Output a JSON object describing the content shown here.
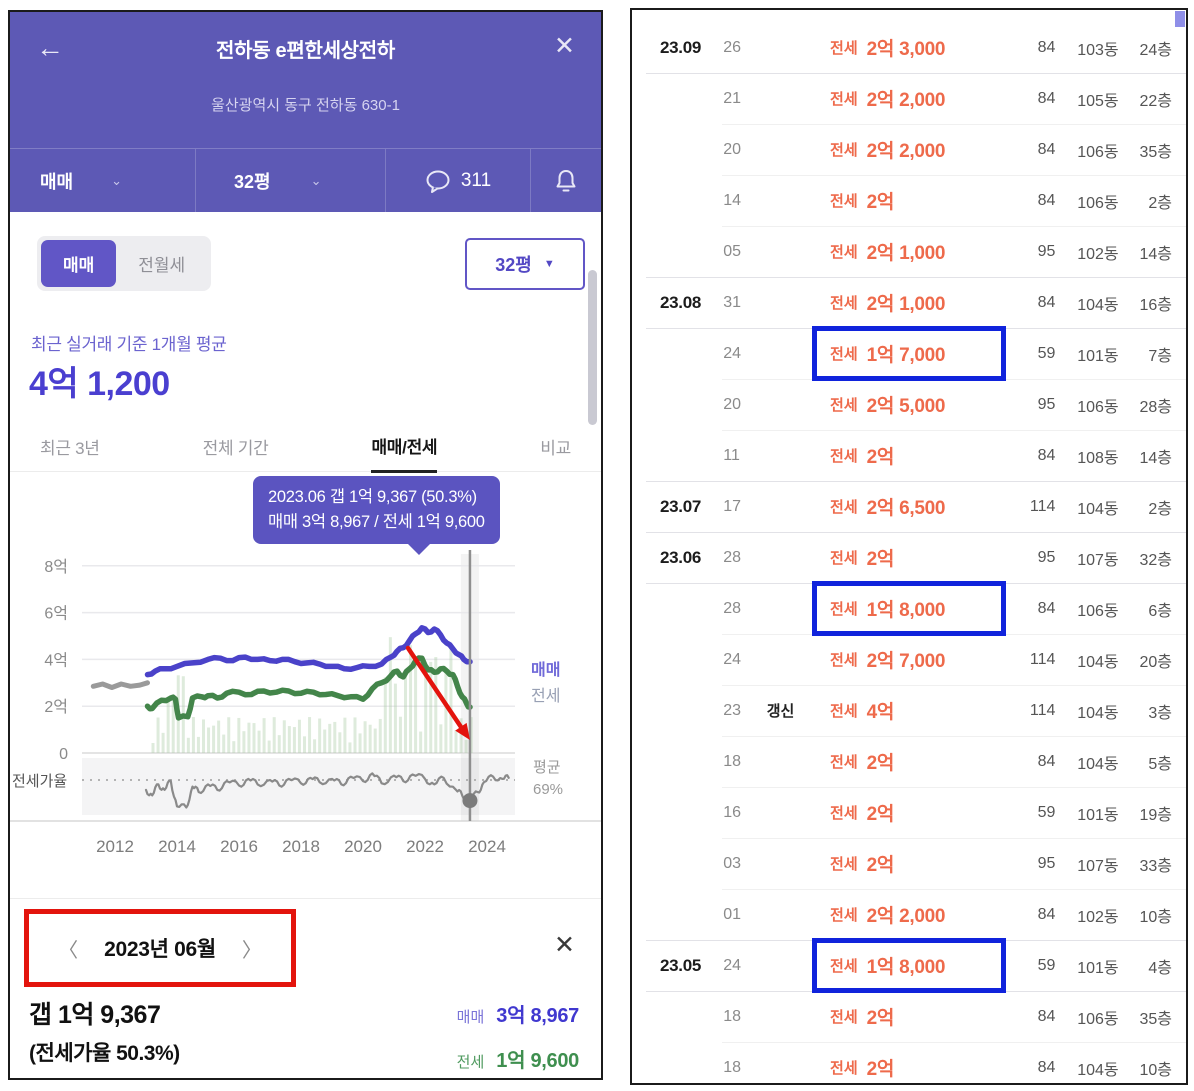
{
  "left_panel": {
    "header": {
      "back_glyph": "←",
      "title": "전하동 e편한세상전하",
      "close_glyph": "✕",
      "address": "울산광역시 동구 전하동 630-1",
      "trade_type": "매매",
      "trade_caret": "⌄",
      "size": "32평",
      "size_caret": "⌄",
      "comment_icon_name": "chat-bubble-icon",
      "comment_count": "311",
      "bell_icon_name": "bell-icon"
    },
    "controls": {
      "toggle_maemae": "매매",
      "toggle_wolse": "전월세",
      "area_select_value": "32평",
      "area_select_caret": "▼"
    },
    "summary": {
      "caption": "최근 실거래 기준 1개월 평균",
      "price": "4억 1,200"
    },
    "tabs": [
      {
        "label": "최근 3년",
        "active": false
      },
      {
        "label": "전체 기간",
        "active": false
      },
      {
        "label": "매매/전세",
        "active": true
      },
      {
        "label": "비교",
        "active": false
      }
    ],
    "tooltip": {
      "line1": "2023.06 갭 1억 9,367 (50.3%)",
      "line2": "매매 3억 8,967 / 전세 1억 9,600"
    },
    "detail": {
      "prev_glyph": "〈",
      "month": "2023년 06월",
      "next_glyph": "〉",
      "close_glyph": "✕",
      "gap": "갭 1억 9,367",
      "ratio": "(전세가율 50.3%)",
      "maemae_label": "매매",
      "maemae_value": "3억 8,967",
      "jeonse_label": "전세",
      "jeonse_value": "1억 9,600"
    }
  },
  "chart_data": {
    "type": "line",
    "title": "매매/전세 실거래 추이",
    "x_ticks": [
      2012,
      2014,
      2016,
      2018,
      2020,
      2022,
      2024
    ],
    "y_ticks": [
      {
        "label": "8억",
        "value": 8
      },
      {
        "label": "6억",
        "value": 6
      },
      {
        "label": "4억",
        "value": 4
      },
      {
        "label": "2억",
        "value": 2
      },
      {
        "label": "0",
        "value": 0
      }
    ],
    "legend": {
      "maemae": "매매",
      "jeonse": "전세"
    },
    "ratio_label": "전세가율",
    "avg_label_1": "평균",
    "avg_label_2": "69%",
    "avg_ratio": 69,
    "marker_year": 2023.45,
    "marker_ratio": 50.3,
    "series": {
      "pre_maemae_gray": [
        [
          2011.3,
          2.85
        ],
        [
          2011.6,
          2.95
        ],
        [
          2011.9,
          2.8
        ],
        [
          2012.2,
          2.95
        ],
        [
          2012.5,
          2.85
        ],
        [
          2012.8,
          2.9
        ],
        [
          2013.05,
          3.0
        ]
      ],
      "maemae": [
        [
          2013.05,
          3.35
        ],
        [
          2013.3,
          3.5
        ],
        [
          2013.6,
          3.6
        ],
        [
          2014,
          3.7
        ],
        [
          2014.5,
          3.85
        ],
        [
          2015,
          4.0
        ],
        [
          2015.4,
          4.05
        ],
        [
          2015.8,
          3.95
        ],
        [
          2016.2,
          4.1
        ],
        [
          2016.6,
          4.0
        ],
        [
          2017,
          3.95
        ],
        [
          2017.4,
          4.0
        ],
        [
          2017.8,
          3.9
        ],
        [
          2018.2,
          3.85
        ],
        [
          2018.6,
          3.8
        ],
        [
          2019,
          3.7
        ],
        [
          2019.4,
          3.6
        ],
        [
          2019.8,
          3.65
        ],
        [
          2020.2,
          3.7
        ],
        [
          2020.6,
          3.8
        ],
        [
          2020.9,
          4.1
        ],
        [
          2021.1,
          4.35
        ],
        [
          2021.3,
          4.5
        ],
        [
          2021.5,
          4.8
        ],
        [
          2021.7,
          5.1
        ],
        [
          2021.9,
          5.35
        ],
        [
          2022.1,
          5.15
        ],
        [
          2022.3,
          5.3
        ],
        [
          2022.5,
          5.05
        ],
        [
          2022.7,
          4.7
        ],
        [
          2022.9,
          4.45
        ],
        [
          2023.1,
          4.2
        ],
        [
          2023.25,
          4.0
        ],
        [
          2023.45,
          3.9
        ]
      ],
      "jeonse": [
        [
          2013.05,
          2.0
        ],
        [
          2013.2,
          1.9
        ],
        [
          2013.5,
          2.25
        ],
        [
          2013.8,
          2.35
        ],
        [
          2013.95,
          2.3
        ],
        [
          2014.05,
          1.5
        ],
        [
          2014.35,
          1.55
        ],
        [
          2014.5,
          2.35
        ],
        [
          2014.8,
          2.4
        ],
        [
          2015,
          2.45
        ],
        [
          2015.3,
          2.35
        ],
        [
          2015.6,
          2.55
        ],
        [
          2016,
          2.6
        ],
        [
          2016.4,
          2.5
        ],
        [
          2016.8,
          2.65
        ],
        [
          2017.2,
          2.6
        ],
        [
          2017.6,
          2.65
        ],
        [
          2018,
          2.55
        ],
        [
          2018.4,
          2.6
        ],
        [
          2018.8,
          2.5
        ],
        [
          2019.2,
          2.45
        ],
        [
          2019.6,
          2.4
        ],
        [
          2020,
          2.3
        ],
        [
          2020.3,
          2.75
        ],
        [
          2020.6,
          3.0
        ],
        [
          2020.9,
          3.3
        ],
        [
          2021.1,
          3.5
        ],
        [
          2021.3,
          3.25
        ],
        [
          2021.5,
          3.6
        ],
        [
          2021.7,
          3.95
        ],
        [
          2021.9,
          4.05
        ],
        [
          2022.1,
          3.55
        ],
        [
          2022.3,
          3.45
        ],
        [
          2022.5,
          3.6
        ],
        [
          2022.7,
          3.5
        ],
        [
          2022.9,
          3.35
        ],
        [
          2023.05,
          2.85
        ],
        [
          2023.2,
          2.4
        ],
        [
          2023.35,
          2.1
        ],
        [
          2023.45,
          1.96
        ]
      ],
      "jeonse_ratio": [
        [
          2013,
          60
        ],
        [
          2013.2,
          55
        ],
        [
          2013.4,
          65
        ],
        [
          2013.6,
          60
        ],
        [
          2013.8,
          68
        ],
        [
          2014,
          45
        ],
        [
          2014.3,
          44
        ],
        [
          2014.5,
          63
        ],
        [
          2014.7,
          58
        ],
        [
          2015,
          65
        ],
        [
          2015.3,
          60
        ],
        [
          2015.6,
          68
        ],
        [
          2016,
          64
        ],
        [
          2016.3,
          70
        ],
        [
          2016.6,
          65
        ],
        [
          2017,
          69
        ],
        [
          2017.3,
          64
        ],
        [
          2017.6,
          70
        ],
        [
          2018,
          66
        ],
        [
          2018.3,
          71
        ],
        [
          2018.6,
          67
        ],
        [
          2019,
          70
        ],
        [
          2019.3,
          65
        ],
        [
          2019.6,
          72
        ],
        [
          2020,
          68
        ],
        [
          2020.3,
          75
        ],
        [
          2020.6,
          66
        ],
        [
          2021,
          73
        ],
        [
          2021.3,
          68
        ],
        [
          2021.6,
          74
        ],
        [
          2022,
          70
        ],
        [
          2022.3,
          65
        ],
        [
          2022.6,
          71
        ],
        [
          2023,
          60
        ],
        [
          2023.2,
          55
        ],
        [
          2023.45,
          50.3
        ],
        [
          2023.7,
          58
        ],
        [
          2023.9,
          67
        ],
        [
          2024.2,
          72
        ],
        [
          2024.5,
          70
        ],
        [
          2024.7,
          71
        ]
      ]
    },
    "annotations": {
      "red_arrow": "하락 강조 화살표"
    }
  },
  "right_panel": {
    "rows": [
      {
        "month": "23.09",
        "day": "26",
        "badge": "",
        "type": "전세",
        "price": "2억 3,000",
        "area": "84",
        "dong": "103동",
        "floor": "24층",
        "highlight": false
      },
      {
        "month": "",
        "day": "21",
        "badge": "",
        "type": "전세",
        "price": "2억 2,000",
        "area": "84",
        "dong": "105동",
        "floor": "22층",
        "highlight": false
      },
      {
        "month": "",
        "day": "20",
        "badge": "",
        "type": "전세",
        "price": "2억 2,000",
        "area": "84",
        "dong": "106동",
        "floor": "35층",
        "highlight": false
      },
      {
        "month": "",
        "day": "14",
        "badge": "",
        "type": "전세",
        "price": "2억",
        "area": "84",
        "dong": "106동",
        "floor": "2층",
        "highlight": false
      },
      {
        "month": "",
        "day": "05",
        "badge": "",
        "type": "전세",
        "price": "2억 1,000",
        "area": "95",
        "dong": "102동",
        "floor": "14층",
        "highlight": false
      },
      {
        "month": "23.08",
        "day": "31",
        "badge": "",
        "type": "전세",
        "price": "2억 1,000",
        "area": "84",
        "dong": "104동",
        "floor": "16층",
        "highlight": false
      },
      {
        "month": "",
        "day": "24",
        "badge": "",
        "type": "전세",
        "price": "1억 7,000",
        "area": "59",
        "dong": "101동",
        "floor": "7층",
        "highlight": true
      },
      {
        "month": "",
        "day": "20",
        "badge": "",
        "type": "전세",
        "price": "2억 5,000",
        "area": "95",
        "dong": "106동",
        "floor": "28층",
        "highlight": false
      },
      {
        "month": "",
        "day": "11",
        "badge": "",
        "type": "전세",
        "price": "2억",
        "area": "84",
        "dong": "108동",
        "floor": "14층",
        "highlight": false
      },
      {
        "month": "23.07",
        "day": "17",
        "badge": "",
        "type": "전세",
        "price": "2억 6,500",
        "area": "114",
        "dong": "104동",
        "floor": "2층",
        "highlight": false
      },
      {
        "month": "23.06",
        "day": "28",
        "badge": "",
        "type": "전세",
        "price": "2억",
        "area": "95",
        "dong": "107동",
        "floor": "32층",
        "highlight": false
      },
      {
        "month": "",
        "day": "28",
        "badge": "",
        "type": "전세",
        "price": "1억 8,000",
        "area": "84",
        "dong": "106동",
        "floor": "6층",
        "highlight": true
      },
      {
        "month": "",
        "day": "24",
        "badge": "",
        "type": "전세",
        "price": "2억 7,000",
        "area": "114",
        "dong": "104동",
        "floor": "20층",
        "highlight": false
      },
      {
        "month": "",
        "day": "23",
        "badge": "갱신",
        "type": "전세",
        "price": "4억",
        "area": "114",
        "dong": "104동",
        "floor": "3층",
        "highlight": false
      },
      {
        "month": "",
        "day": "18",
        "badge": "",
        "type": "전세",
        "price": "2억",
        "area": "84",
        "dong": "104동",
        "floor": "5층",
        "highlight": false
      },
      {
        "month": "",
        "day": "16",
        "badge": "",
        "type": "전세",
        "price": "2억",
        "area": "59",
        "dong": "101동",
        "floor": "19층",
        "highlight": false
      },
      {
        "month": "",
        "day": "03",
        "badge": "",
        "type": "전세",
        "price": "2억",
        "area": "95",
        "dong": "107동",
        "floor": "33층",
        "highlight": false
      },
      {
        "month": "",
        "day": "01",
        "badge": "",
        "type": "전세",
        "price": "2억 2,000",
        "area": "84",
        "dong": "102동",
        "floor": "10층",
        "highlight": false
      },
      {
        "month": "23.05",
        "day": "24",
        "badge": "",
        "type": "전세",
        "price": "1억 8,000",
        "area": "59",
        "dong": "101동",
        "floor": "4층",
        "highlight": true
      },
      {
        "month": "",
        "day": "18",
        "badge": "",
        "type": "전세",
        "price": "2억",
        "area": "84",
        "dong": "106동",
        "floor": "35층",
        "highlight": false
      },
      {
        "month": "",
        "day": "18",
        "badge": "",
        "type": "전세",
        "price": "2억",
        "area": "84",
        "dong": "104동",
        "floor": "10층",
        "highlight": false
      }
    ]
  },
  "colors": {
    "header_purple": "#5d59b5",
    "accent_purple": "#6156c6",
    "price_blue": "#4a3fd0",
    "tooltip_bg": "#5b54c0",
    "line_maemae": "#4a42c9",
    "line_jeonse": "#43854a",
    "line_pre_gray": "#9a9a9a",
    "ratio_line_gray": "#8a8a8a",
    "price_orange": "#ee6a4b",
    "annotation_red": "#e3140d",
    "annotation_blue": "#1023dc",
    "value_green": "#3f8f4f"
  }
}
